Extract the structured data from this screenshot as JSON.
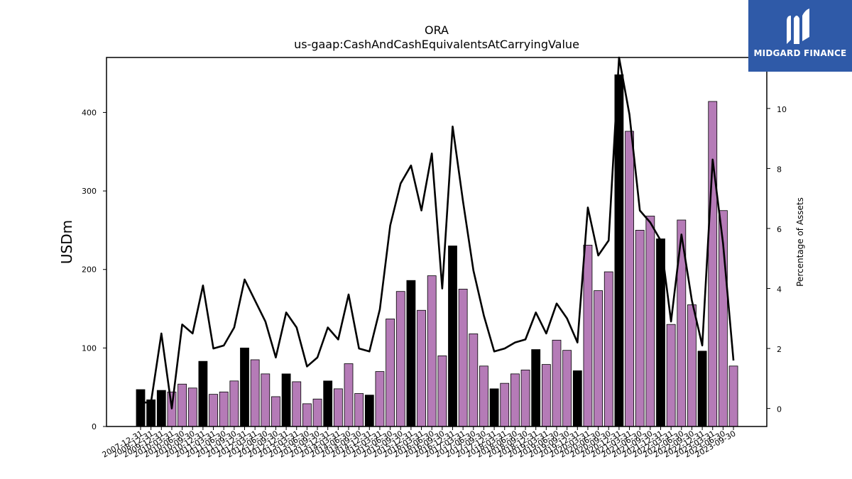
{
  "logo": {
    "text": "MIDGARD FINANCE",
    "color": "#2f5aa8"
  },
  "chart_data": {
    "type": "bar",
    "title": "ORA",
    "subtitle": "us-gaap:CashAndCashEquivalentsAtCarryingValue",
    "ylabel": "USDm",
    "y2label": "Percentage of Assets",
    "ylim": [
      0,
      470
    ],
    "y2lim": [
      -0.6,
      11.7
    ],
    "yticks": [
      0,
      100,
      200,
      300,
      400
    ],
    "y2ticks": [
      0,
      2,
      4,
      6,
      8,
      10
    ],
    "colors": {
      "annual": "#000000",
      "quarterly": "#b57bb7",
      "line": "#000000"
    },
    "categories": [
      "2007-12-31",
      "2008-12-31",
      "2009-12-31",
      "2010-03-31",
      "2010-06-30",
      "2010-09-30",
      "2010-12-31",
      "2011-03-31",
      "2011-06-30",
      "2011-09-30",
      "2011-12-31",
      "2012-03-31",
      "2012-06-30",
      "2012-09-30",
      "2012-12-31",
      "2013-03-31",
      "2013-06-30",
      "2013-09-30",
      "2013-12-31",
      "2014-03-31",
      "2014-06-30",
      "2014-09-30",
      "2014-12-31",
      "2015-03-31",
      "2015-06-30",
      "2015-09-30",
      "2015-12-31",
      "2016-03-31",
      "2016-06-30",
      "2016-09-30",
      "2016-12-31",
      "2017-03-31",
      "2017-06-30",
      "2017-09-30",
      "2017-12-31",
      "2018-03-31",
      "2018-06-30",
      "2018-09-30",
      "2018-12-31",
      "2019-03-31",
      "2019-06-30",
      "2019-09-30",
      "2019-12-31",
      "2020-03-31",
      "2020-06-30",
      "2020-09-30",
      "2020-12-31",
      "2021-03-31",
      "2021-06-30",
      "2021-09-30",
      "2021-12-31",
      "2022-03-31",
      "2022-06-30",
      "2022-09-30",
      "2022-12-31",
      "2023-03-31",
      "2023-06-30",
      "2023-09-30"
    ],
    "series": [
      {
        "values": [
          47,
          34,
          46,
          44,
          54,
          49,
          83,
          41,
          44,
          58,
          100,
          85,
          67,
          38,
          67,
          57,
          29,
          35,
          58,
          48,
          80,
          42,
          40,
          70,
          137,
          172,
          186,
          148,
          192,
          90,
          230,
          175,
          118,
          77,
          48,
          55,
          67,
          72,
          98,
          79,
          110,
          97,
          71,
          231,
          173,
          197,
          448,
          376,
          250,
          268,
          239,
          130,
          263,
          155,
          96,
          414,
          275,
          77
        ]
      },
      {
        "values": [
          0.2,
          0.2,
          2.5,
          0.0,
          2.8,
          2.5,
          4.1,
          2.0,
          2.1,
          2.7,
          4.3,
          3.6,
          2.9,
          1.7,
          3.2,
          2.7,
          1.4,
          1.7,
          2.7,
          2.3,
          3.8,
          2.0,
          1.9,
          3.3,
          6.1,
          7.5,
          8.1,
          6.6,
          8.5,
          4.0,
          9.4,
          6.9,
          4.6,
          3.1,
          1.9,
          2.0,
          2.2,
          2.3,
          3.2,
          2.5,
          3.5,
          3.0,
          2.2,
          6.7,
          5.1,
          5.6,
          11.7,
          9.8,
          6.6,
          6.2,
          5.6,
          2.9,
          5.8,
          3.6,
          2.1,
          8.3,
          5.5,
          1.6
        ]
      }
    ],
    "annual_flags": [
      1,
      1,
      1,
      0,
      0,
      0,
      1,
      0,
      0,
      0,
      1,
      0,
      0,
      0,
      1,
      0,
      0,
      0,
      1,
      0,
      0,
      0,
      1,
      0,
      0,
      0,
      1,
      0,
      0,
      0,
      1,
      0,
      0,
      0,
      1,
      0,
      0,
      0,
      1,
      0,
      0,
      0,
      1,
      0,
      0,
      0,
      1,
      0,
      0,
      0,
      1,
      0,
      0,
      0,
      1,
      0,
      0,
      0
    ]
  }
}
